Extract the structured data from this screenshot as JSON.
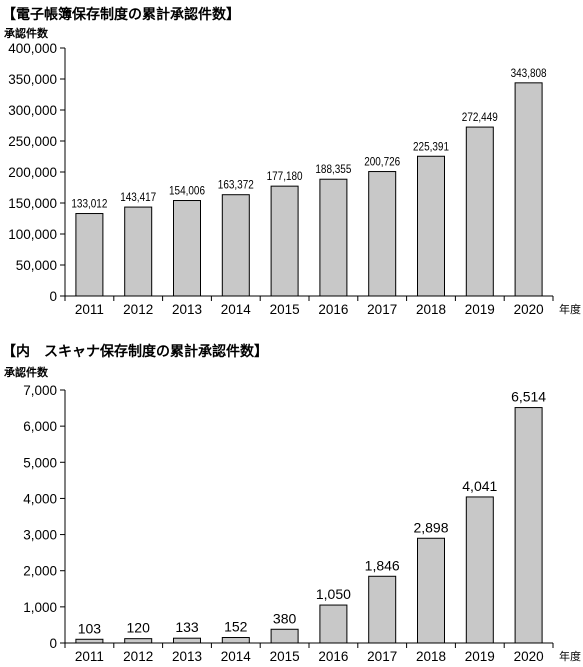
{
  "charts": [
    {
      "title": "【電子帳簿保存制度の累計承認件数】",
      "unit_label": "承認件数",
      "x_suffix": "年度"
    },
    {
      "title": "【内　スキャナ保存制度の累計承認件数】",
      "unit_label": "承認件数",
      "x_suffix": "年度"
    }
  ],
  "chart_data": [
    {
      "type": "bar",
      "title": "【電子帳簿保存制度の累計承認件数】",
      "ylabel": "承認件数",
      "xlabel": "年度",
      "categories": [
        "2011",
        "2012",
        "2013",
        "2014",
        "2015",
        "2016",
        "2017",
        "2018",
        "2019",
        "2020"
      ],
      "values": [
        133012,
        143417,
        154006,
        163372,
        177180,
        188355,
        200726,
        225391,
        272449,
        343808
      ],
      "data_labels": [
        "133,012",
        "143,417",
        "154,006",
        "163,372",
        "177,180",
        "188,355",
        "200,726",
        "225,391",
        "272,449",
        "343,808"
      ],
      "ylim": [
        0,
        400000
      ],
      "yticks": [
        0,
        50000,
        100000,
        150000,
        200000,
        250000,
        300000,
        350000,
        400000
      ],
      "ytick_labels": [
        "0",
        "50,000",
        "100,000",
        "150,000",
        "200,000",
        "250,000",
        "300,000",
        "350,000",
        "400,000"
      ],
      "grid": false,
      "bar_color": "#c8c8c8",
      "bar_edge_color": "#000000"
    },
    {
      "type": "bar",
      "title": "【内　スキャナ保存制度の累計承認件数】",
      "ylabel": "承認件数",
      "xlabel": "年度",
      "categories": [
        "2011",
        "2012",
        "2013",
        "2014",
        "2015",
        "2016",
        "2017",
        "2018",
        "2019",
        "2020"
      ],
      "values": [
        103,
        120,
        133,
        152,
        380,
        1050,
        1846,
        2898,
        4041,
        6514
      ],
      "data_labels": [
        "103",
        "120",
        "133",
        "152",
        "380",
        "1,050",
        "1,846",
        "2,898",
        "4,041",
        "6,514"
      ],
      "ylim": [
        0,
        7000
      ],
      "yticks": [
        0,
        1000,
        2000,
        3000,
        4000,
        5000,
        6000,
        7000
      ],
      "ytick_labels": [
        "0",
        "1,000",
        "2,000",
        "3,000",
        "4,000",
        "5,000",
        "6,000",
        "7,000"
      ],
      "grid": false,
      "bar_color": "#c8c8c8",
      "bar_edge_color": "#000000"
    }
  ]
}
